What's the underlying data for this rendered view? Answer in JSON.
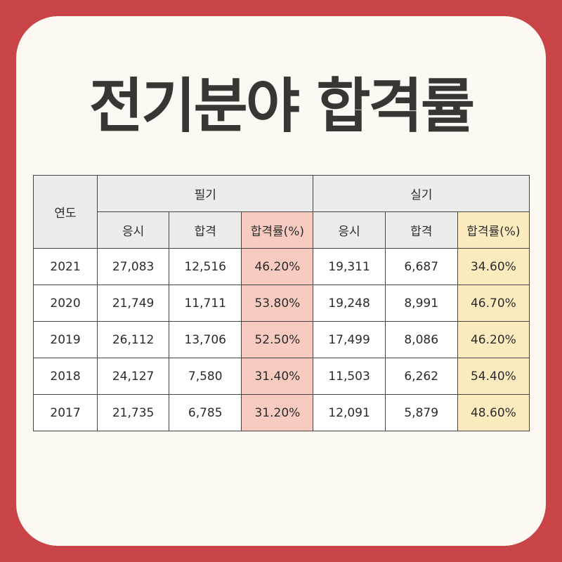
{
  "title": "전기분야 합격률",
  "table": {
    "year_header": "연도",
    "groups": [
      "필기",
      "실기"
    ],
    "sub_headers": [
      "응시",
      "합격",
      "합격률(%)",
      "응시",
      "합격",
      "합격률(%)"
    ],
    "rows": [
      {
        "year": "2021",
        "written_applicants": "27,083",
        "written_passed": "12,516",
        "written_rate": "46.20%",
        "practical_applicants": "19,311",
        "practical_passed": "6,687",
        "practical_rate": "34.60%"
      },
      {
        "year": "2020",
        "written_applicants": "21,749",
        "written_passed": "11,711",
        "written_rate": "53.80%",
        "practical_applicants": "19,248",
        "practical_passed": "8,991",
        "practical_rate": "46.70%"
      },
      {
        "year": "2019",
        "written_applicants": "26,112",
        "written_passed": "13,706",
        "written_rate": "52.50%",
        "practical_applicants": "17,499",
        "practical_passed": "8,086",
        "practical_rate": "46.20%"
      },
      {
        "year": "2018",
        "written_applicants": "24,127",
        "written_passed": "7,580",
        "written_rate": "31.40%",
        "practical_applicants": "11,503",
        "practical_passed": "6,262",
        "practical_rate": "54.40%"
      },
      {
        "year": "2017",
        "written_applicants": "21,735",
        "written_passed": "6,785",
        "written_rate": "31.20%",
        "practical_applicants": "12,091",
        "practical_passed": "5,879",
        "practical_rate": "48.60%"
      }
    ]
  },
  "colors": {
    "background": "#c94446",
    "card": "#fdf8f1",
    "header_gray": "#ececec",
    "written_rate_highlight": "#f7cbc0",
    "practical_rate_highlight": "#fdebc0",
    "title_text": "#3a3532"
  }
}
